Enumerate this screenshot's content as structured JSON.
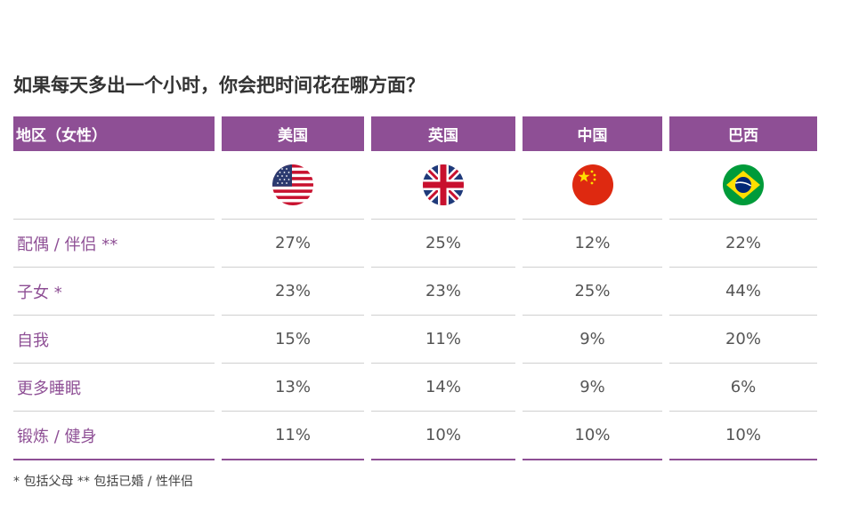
{
  "title": "如果每天多出一个小时，你会把时间花在哪方面？",
  "header": {
    "region": "地区（女性）",
    "countries": [
      "美国",
      "英国",
      "中国",
      "巴西"
    ]
  },
  "flags": [
    "us-flag-icon",
    "uk-flag-icon",
    "china-flag-icon",
    "brazil-flag-icon"
  ],
  "rows": [
    {
      "label": "配偶 / 伴侣 **",
      "values": [
        "27%",
        "25%",
        "12%",
        "22%"
      ]
    },
    {
      "label": "子女 *",
      "values": [
        "23%",
        "23%",
        "25%",
        "44%"
      ]
    },
    {
      "label": "自我",
      "values": [
        "15%",
        "11%",
        "9%",
        "20%"
      ]
    },
    {
      "label": "更多睡眠",
      "values": [
        "13%",
        "14%",
        "9%",
        "6%"
      ]
    },
    {
      "label": "锻炼 / 健身",
      "values": [
        "11%",
        "10%",
        "10%",
        "10%"
      ]
    }
  ],
  "footnote": "* 包括父母 ** 包括已婚 / 性伴侣",
  "colors": {
    "accent": "#8e4f95",
    "row_label": "#8e4f95",
    "divider": "#cfcfcf"
  },
  "chart_data": {
    "type": "table",
    "title": "如果每天多出一个小时，你会把时间花在哪方面？",
    "columns": [
      "美国",
      "英国",
      "中国",
      "巴西"
    ],
    "rows": [
      "配偶 / 伴侣 **",
      "子女 *",
      "自我",
      "更多睡眠",
      "锻炼 / 健身"
    ],
    "values_percent": [
      [
        27,
        25,
        12,
        22
      ],
      [
        23,
        23,
        25,
        44
      ],
      [
        15,
        11,
        9,
        20
      ],
      [
        13,
        14,
        9,
        6
      ],
      [
        11,
        10,
        10,
        10
      ]
    ]
  }
}
